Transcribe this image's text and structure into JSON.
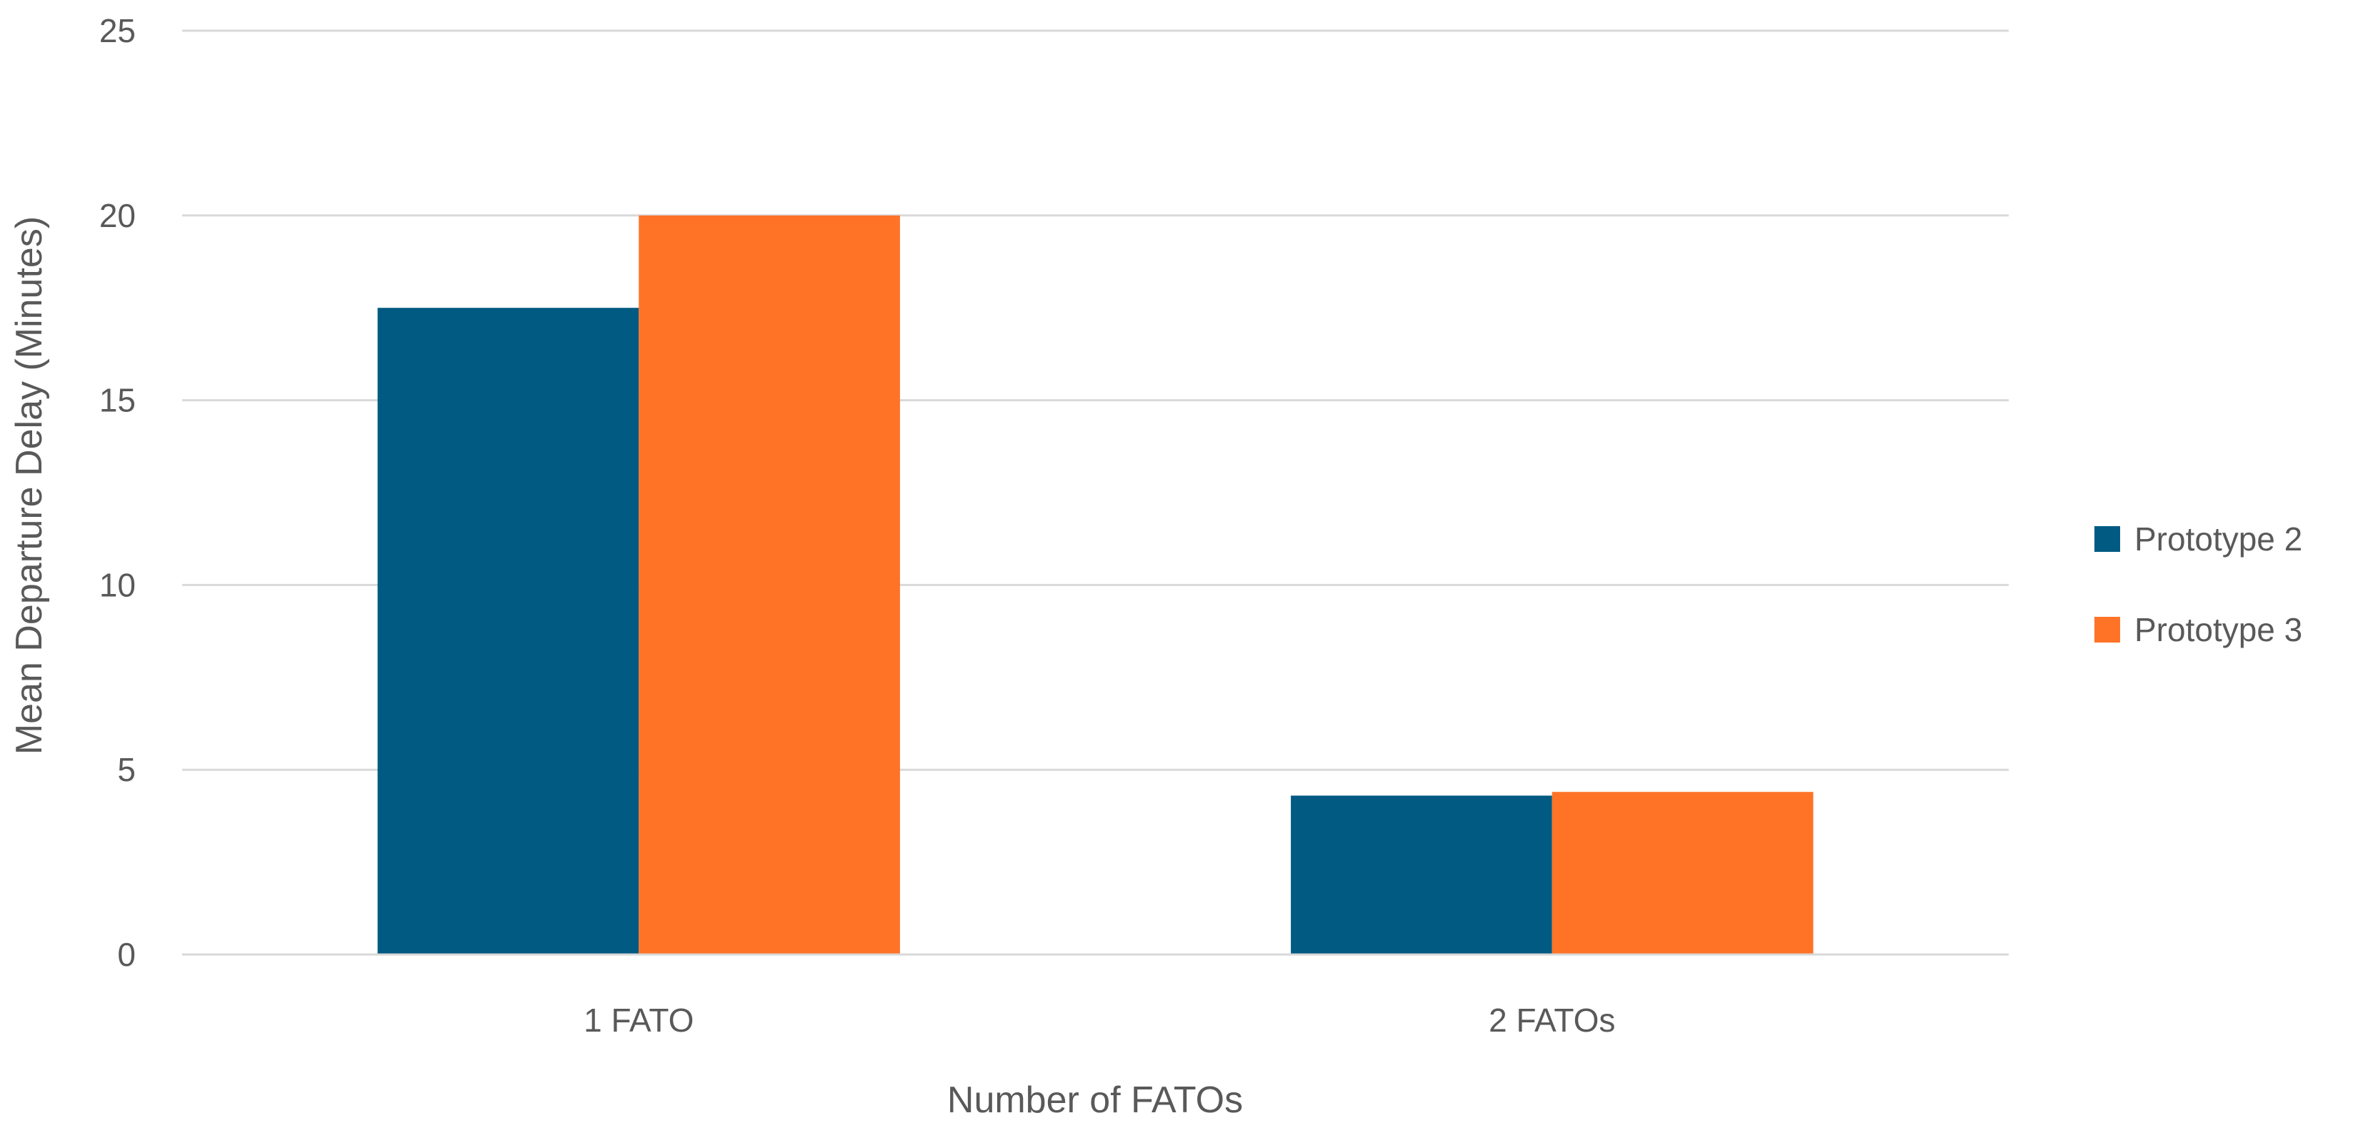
{
  "chart_data": {
    "type": "bar",
    "title": "",
    "xlabel": "Number of FATOs",
    "ylabel": "Mean Departure Delay (Minutes)",
    "categories": [
      "1 FATO",
      "2 FATOs"
    ],
    "series": [
      {
        "name": "Prototype 2",
        "color": "#005A82",
        "values": [
          17.5,
          4.3
        ]
      },
      {
        "name": "Prototype 3",
        "color": "#FF7327",
        "values": [
          20.0,
          4.4
        ]
      }
    ],
    "ylim": [
      0,
      25
    ],
    "yticks": [
      "0",
      "5",
      "10",
      "15",
      "20",
      "25"
    ],
    "grid": true,
    "legend_position": "right"
  }
}
